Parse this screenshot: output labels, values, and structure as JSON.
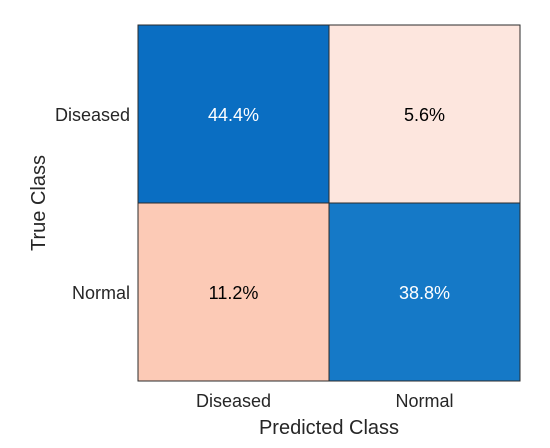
{
  "chart_data": {
    "type": "heatmap",
    "xlabel": "Predicted Class",
    "ylabel": "True Class",
    "x_categories": [
      "Diseased",
      "Normal"
    ],
    "y_categories": [
      "Diseased",
      "Normal"
    ],
    "values": [
      [
        44.4,
        5.6
      ],
      [
        11.2,
        38.8
      ]
    ],
    "labels": [
      [
        "44.4%",
        "5.6%"
      ],
      [
        "11.2%",
        "38.8%"
      ]
    ],
    "cell_colors": [
      [
        "#0a6ec2",
        "#fde6de"
      ],
      [
        "#fccab6",
        "#1579c7"
      ]
    ],
    "text_colors": [
      [
        "#ffffff",
        "#000000"
      ],
      [
        "#000000",
        "#ffffff"
      ]
    ]
  }
}
